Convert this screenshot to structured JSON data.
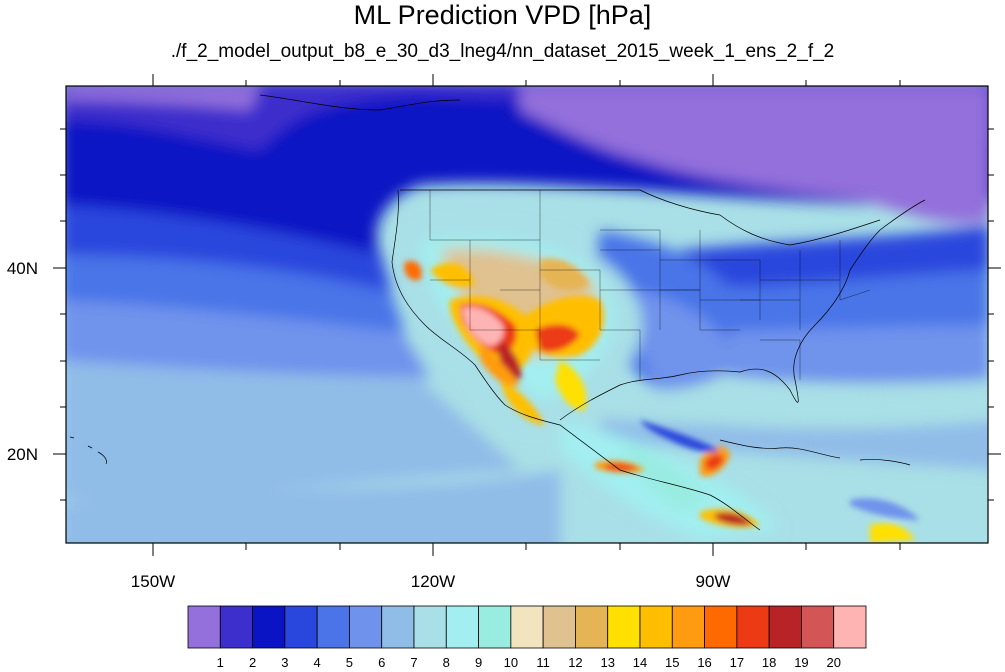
{
  "title": "ML Prediction VPD [hPa]",
  "subtitle": "./f_2_model_output_b8_e_30_d3_lneg4/nn_dataset_2015_week_1_ens_2_f_2",
  "map": {
    "lon_labels": [
      "150W",
      "120W",
      "90W"
    ],
    "lat_labels": [
      "40N",
      "20N"
    ]
  },
  "colorbar": {
    "labels": [
      "1",
      "2",
      "3",
      "4",
      "5",
      "6",
      "7",
      "8",
      "9",
      "10",
      "11",
      "12",
      "13",
      "14",
      "15",
      "16",
      "17",
      "18",
      "19",
      "20"
    ],
    "colors": [
      "#9370db",
      "#3c2fcc",
      "#0a14c4",
      "#2a47dd",
      "#4a74e8",
      "#6f93ec",
      "#90bce8",
      "#a9dfe6",
      "#a2eef0",
      "#98ece0",
      "#f3e4c0",
      "#e0c190",
      "#e5b555",
      "#ffe000",
      "#ffbf00",
      "#ff9b10",
      "#ff6a00",
      "#ec3a14",
      "#b82328",
      "#d35555",
      "#ffb4b4"
    ]
  }
}
